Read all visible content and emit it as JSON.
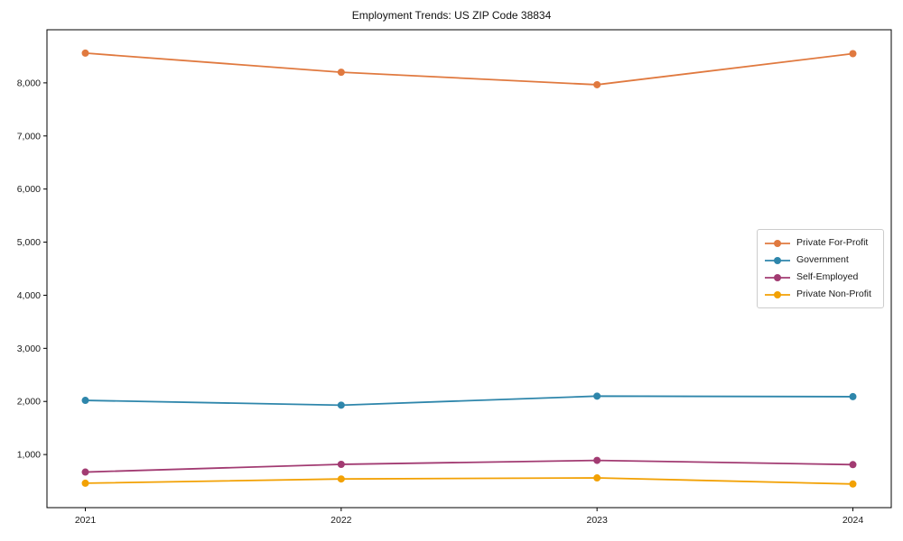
{
  "chart_data": {
    "type": "line",
    "title": "Employment Trends: US ZIP Code 38834",
    "x_values": [
      2021,
      2022,
      2023,
      2024
    ],
    "x_tick_labels": [
      "2021",
      "2022",
      "2023",
      "2024"
    ],
    "xlim": [
      2020.85,
      2024.15
    ],
    "ylim": [
      0,
      9000
    ],
    "y_ticks": [
      1000,
      2000,
      3000,
      4000,
      5000,
      6000,
      7000,
      8000
    ],
    "y_tick_labels": [
      "1,000",
      "2,000",
      "3,000",
      "4,000",
      "5,000",
      "6,000",
      "7,000",
      "8,000"
    ],
    "grid": false,
    "legend_position": "center right",
    "marker": "circle",
    "series": [
      {
        "name": "Private For-Profit",
        "color": "#E0793F",
        "values": [
          8560,
          8200,
          7965,
          8550
        ]
      },
      {
        "name": "Government",
        "color": "#2E86AB",
        "values": [
          2020,
          1930,
          2100,
          2090
        ]
      },
      {
        "name": "Self-Employed",
        "color": "#A23B72",
        "values": [
          670,
          815,
          890,
          810
        ]
      },
      {
        "name": "Private Non-Profit",
        "color": "#F2A104",
        "values": [
          460,
          540,
          560,
          445
        ]
      }
    ],
    "colors": {
      "axis": "#000000",
      "tick_label": "#1a1a1a",
      "legend_border": "#cccccc",
      "background": "#ffffff"
    }
  }
}
